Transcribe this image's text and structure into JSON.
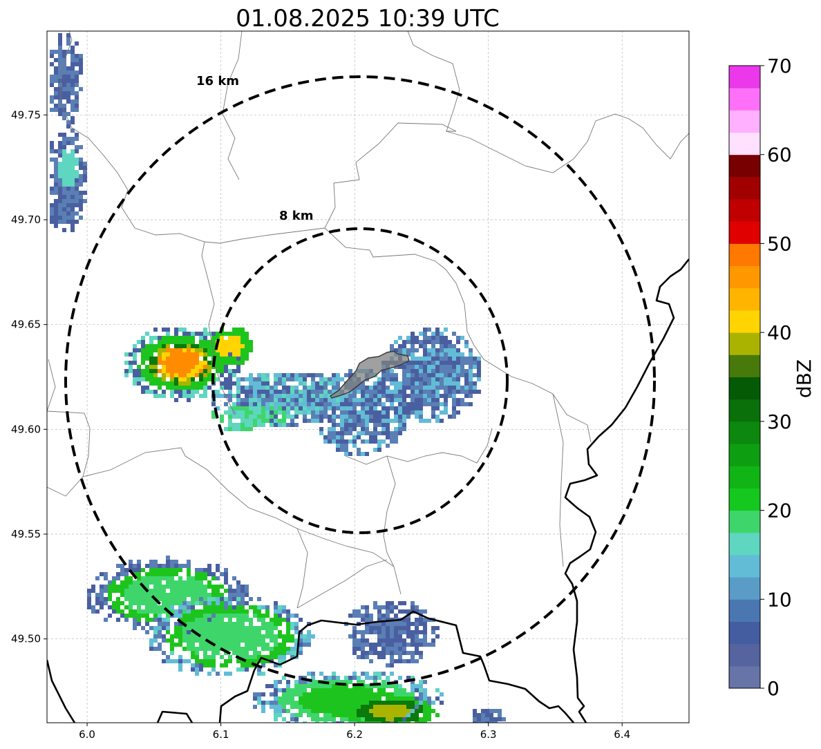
{
  "title": "01.08.2025 10:39 UTC",
  "map": {
    "lon_range": [
      5.97,
      6.45
    ],
    "lat_range": [
      49.46,
      49.79
    ],
    "x_ticks": [
      "6.0",
      "6.1",
      "6.2",
      "6.3",
      "6.4"
    ],
    "x_tick_values": [
      6.0,
      6.1,
      6.2,
      6.3,
      6.4
    ],
    "y_ticks": [
      "49.50",
      "49.55",
      "49.60",
      "49.65",
      "49.70",
      "49.75"
    ],
    "y_tick_values": [
      49.5,
      49.55,
      49.6,
      49.65,
      49.7,
      49.75
    ],
    "grid": true,
    "radar_center": {
      "lon": 6.205,
      "lat": 49.623
    },
    "rings": [
      {
        "label": "8 km",
        "radius_km": 8
      },
      {
        "label": "16 km",
        "radius_km": 16
      }
    ],
    "echo_colors": {
      "weak": "#4a5fa0",
      "blue": "#5a7fb5",
      "cyan": "#62bcd6",
      "aqua": "#5fd6c0",
      "green_light": "#3ed66a",
      "green": "#1ec41e",
      "green_dark": "#0a7a0a",
      "olive": "#aab400",
      "yellow": "#ffd400",
      "orange": "#ff8c00"
    }
  },
  "colorbar": {
    "label": "dBZ",
    "ticks": [
      "0",
      "10",
      "20",
      "30",
      "40",
      "50",
      "60",
      "70"
    ],
    "tick_values": [
      0,
      10,
      20,
      30,
      40,
      50,
      60,
      70
    ],
    "range": [
      0,
      70
    ],
    "colors": [
      "#6674a8",
      "#55639e",
      "#435da0",
      "#4a77b0",
      "#5a9cc8",
      "#62bcd6",
      "#5fd6c0",
      "#3ed66a",
      "#14c81e",
      "#10b414",
      "#0e9e12",
      "#0c880e",
      "#0a700a",
      "#055a05",
      "#477a0a",
      "#aab400",
      "#ffd400",
      "#ffb400",
      "#ff9800",
      "#ff7800",
      "#e00000",
      "#c00000",
      "#a00000",
      "#780000",
      "#ffe0ff",
      "#ffb0ff",
      "#ff70f8",
      "#ea38ea"
    ]
  }
}
